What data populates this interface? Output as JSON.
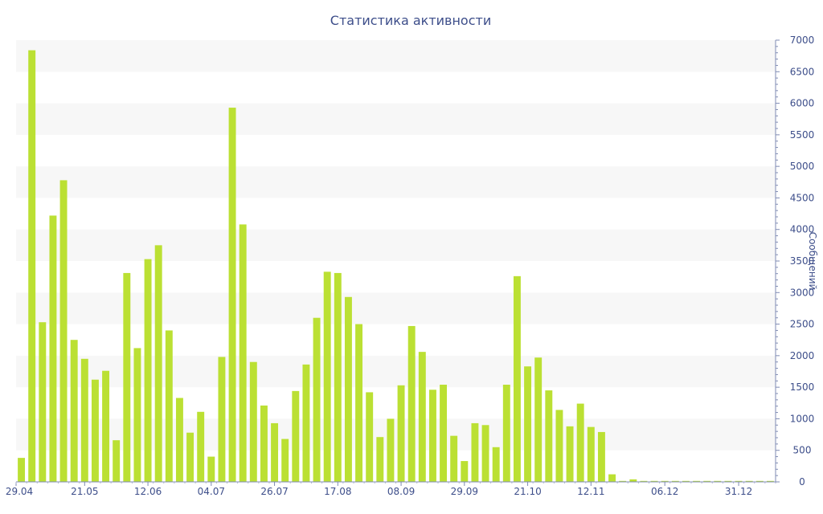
{
  "chart_data": {
    "type": "bar",
    "title": "Статистика активности",
    "ylabel": "Сообщений",
    "xlabel": "",
    "ylim": [
      0,
      7000
    ],
    "y_ticks": [
      0,
      500,
      1000,
      1500,
      2000,
      2500,
      3000,
      3500,
      4000,
      4500,
      5000,
      5500,
      6000,
      6500,
      7000
    ],
    "x_tick_labels": [
      "29.04",
      "21.05",
      "12.06",
      "04.07",
      "26.07",
      "17.08",
      "08.09",
      "29.09",
      "21.10",
      "12.11",
      "06.12",
      "31.12"
    ],
    "y_axis_side": "right",
    "grid": "horizontal bands",
    "bar_color": "#bbe033",
    "values": [
      380,
      6840,
      2530,
      4220,
      4780,
      2250,
      1950,
      1620,
      1760,
      660,
      3310,
      2120,
      3530,
      3750,
      2400,
      1330,
      780,
      1110,
      400,
      1980,
      5930,
      4080,
      1900,
      1210,
      930,
      680,
      1440,
      1860,
      2600,
      3330,
      3310,
      2930,
      2500,
      1420,
      710,
      1000,
      1530,
      2470,
      2060,
      1460,
      1540,
      730,
      330,
      930,
      900,
      550,
      1540,
      3260,
      1830,
      1970,
      1450,
      1140,
      880,
      1240,
      870,
      790,
      120,
      0,
      40,
      0,
      0,
      0,
      0,
      0,
      0,
      0,
      0,
      0,
      0,
      0,
      0,
      0
    ]
  }
}
